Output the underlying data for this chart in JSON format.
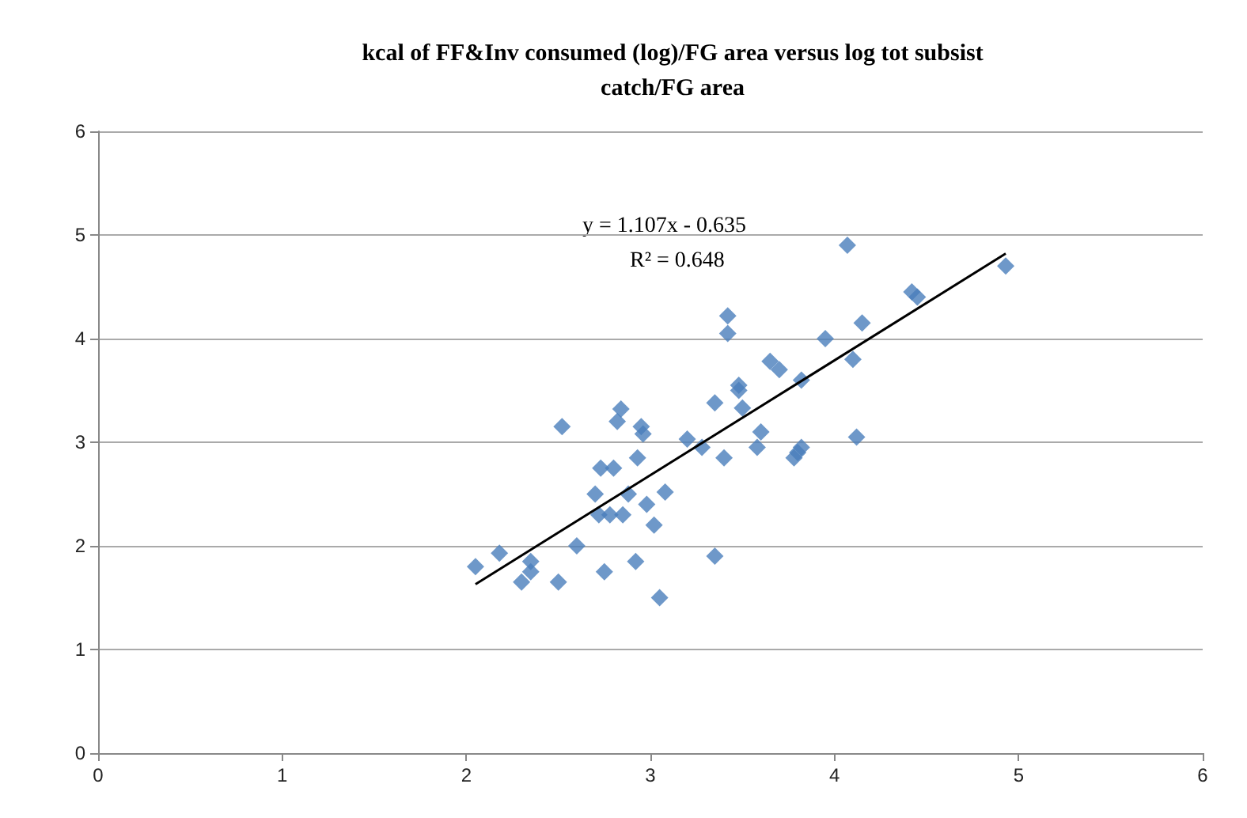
{
  "chart_data": {
    "type": "scatter",
    "title": "kcal of FF&Inv consumed (log)/FG area versus log tot subsist\ncatch/FG area",
    "series": [
      {
        "color": "#4a7ebb",
        "x": [
          2.05,
          2.18,
          2.3,
          2.35,
          2.35,
          2.5,
          2.52,
          2.6,
          2.7,
          2.72,
          2.73,
          2.75,
          2.78,
          2.8,
          2.82,
          2.84,
          2.85,
          2.88,
          2.92,
          2.93,
          2.95,
          2.96,
          2.98,
          3.02,
          3.08,
          3.05,
          3.2,
          3.28,
          3.35,
          3.35,
          3.4,
          3.42,
          3.42,
          3.48,
          3.48,
          3.5,
          3.58,
          3.6,
          3.65,
          3.7,
          3.78,
          3.8,
          3.82,
          3.82,
          3.95,
          4.07,
          4.1,
          4.12,
          4.15,
          4.42,
          4.45,
          4.93
        ],
        "values": [
          1.8,
          1.93,
          1.65,
          1.75,
          1.85,
          1.65,
          3.15,
          2.0,
          2.5,
          2.3,
          2.75,
          1.75,
          2.3,
          2.75,
          3.2,
          3.32,
          2.3,
          2.5,
          1.85,
          2.85,
          3.15,
          3.08,
          2.4,
          2.2,
          2.52,
          1.5,
          3.03,
          2.95,
          3.38,
          1.9,
          2.85,
          4.22,
          4.05,
          3.55,
          3.5,
          3.33,
          2.95,
          3.1,
          3.78,
          3.7,
          2.85,
          2.9,
          2.95,
          3.6,
          4.0,
          4.9,
          3.8,
          3.05,
          4.15,
          4.45,
          4.4,
          4.7
        ]
      },
      {
        "type": "line",
        "color": "#000000",
        "marker": "none",
        "x": [
          2.05,
          4.93
        ],
        "values": [
          1.63,
          4.82
        ]
      }
    ],
    "annotations": [
      "y = 1.107x - 0.635",
      "R² = 0.648"
    ],
    "xlim": [
      0,
      6
    ],
    "xticks": [
      0,
      1,
      2,
      3,
      4,
      5,
      6
    ],
    "ylim": [
      0,
      6
    ],
    "yticks": [
      0,
      1,
      2,
      3,
      4,
      5,
      6
    ],
    "grid": "y",
    "marker": "diamond"
  }
}
